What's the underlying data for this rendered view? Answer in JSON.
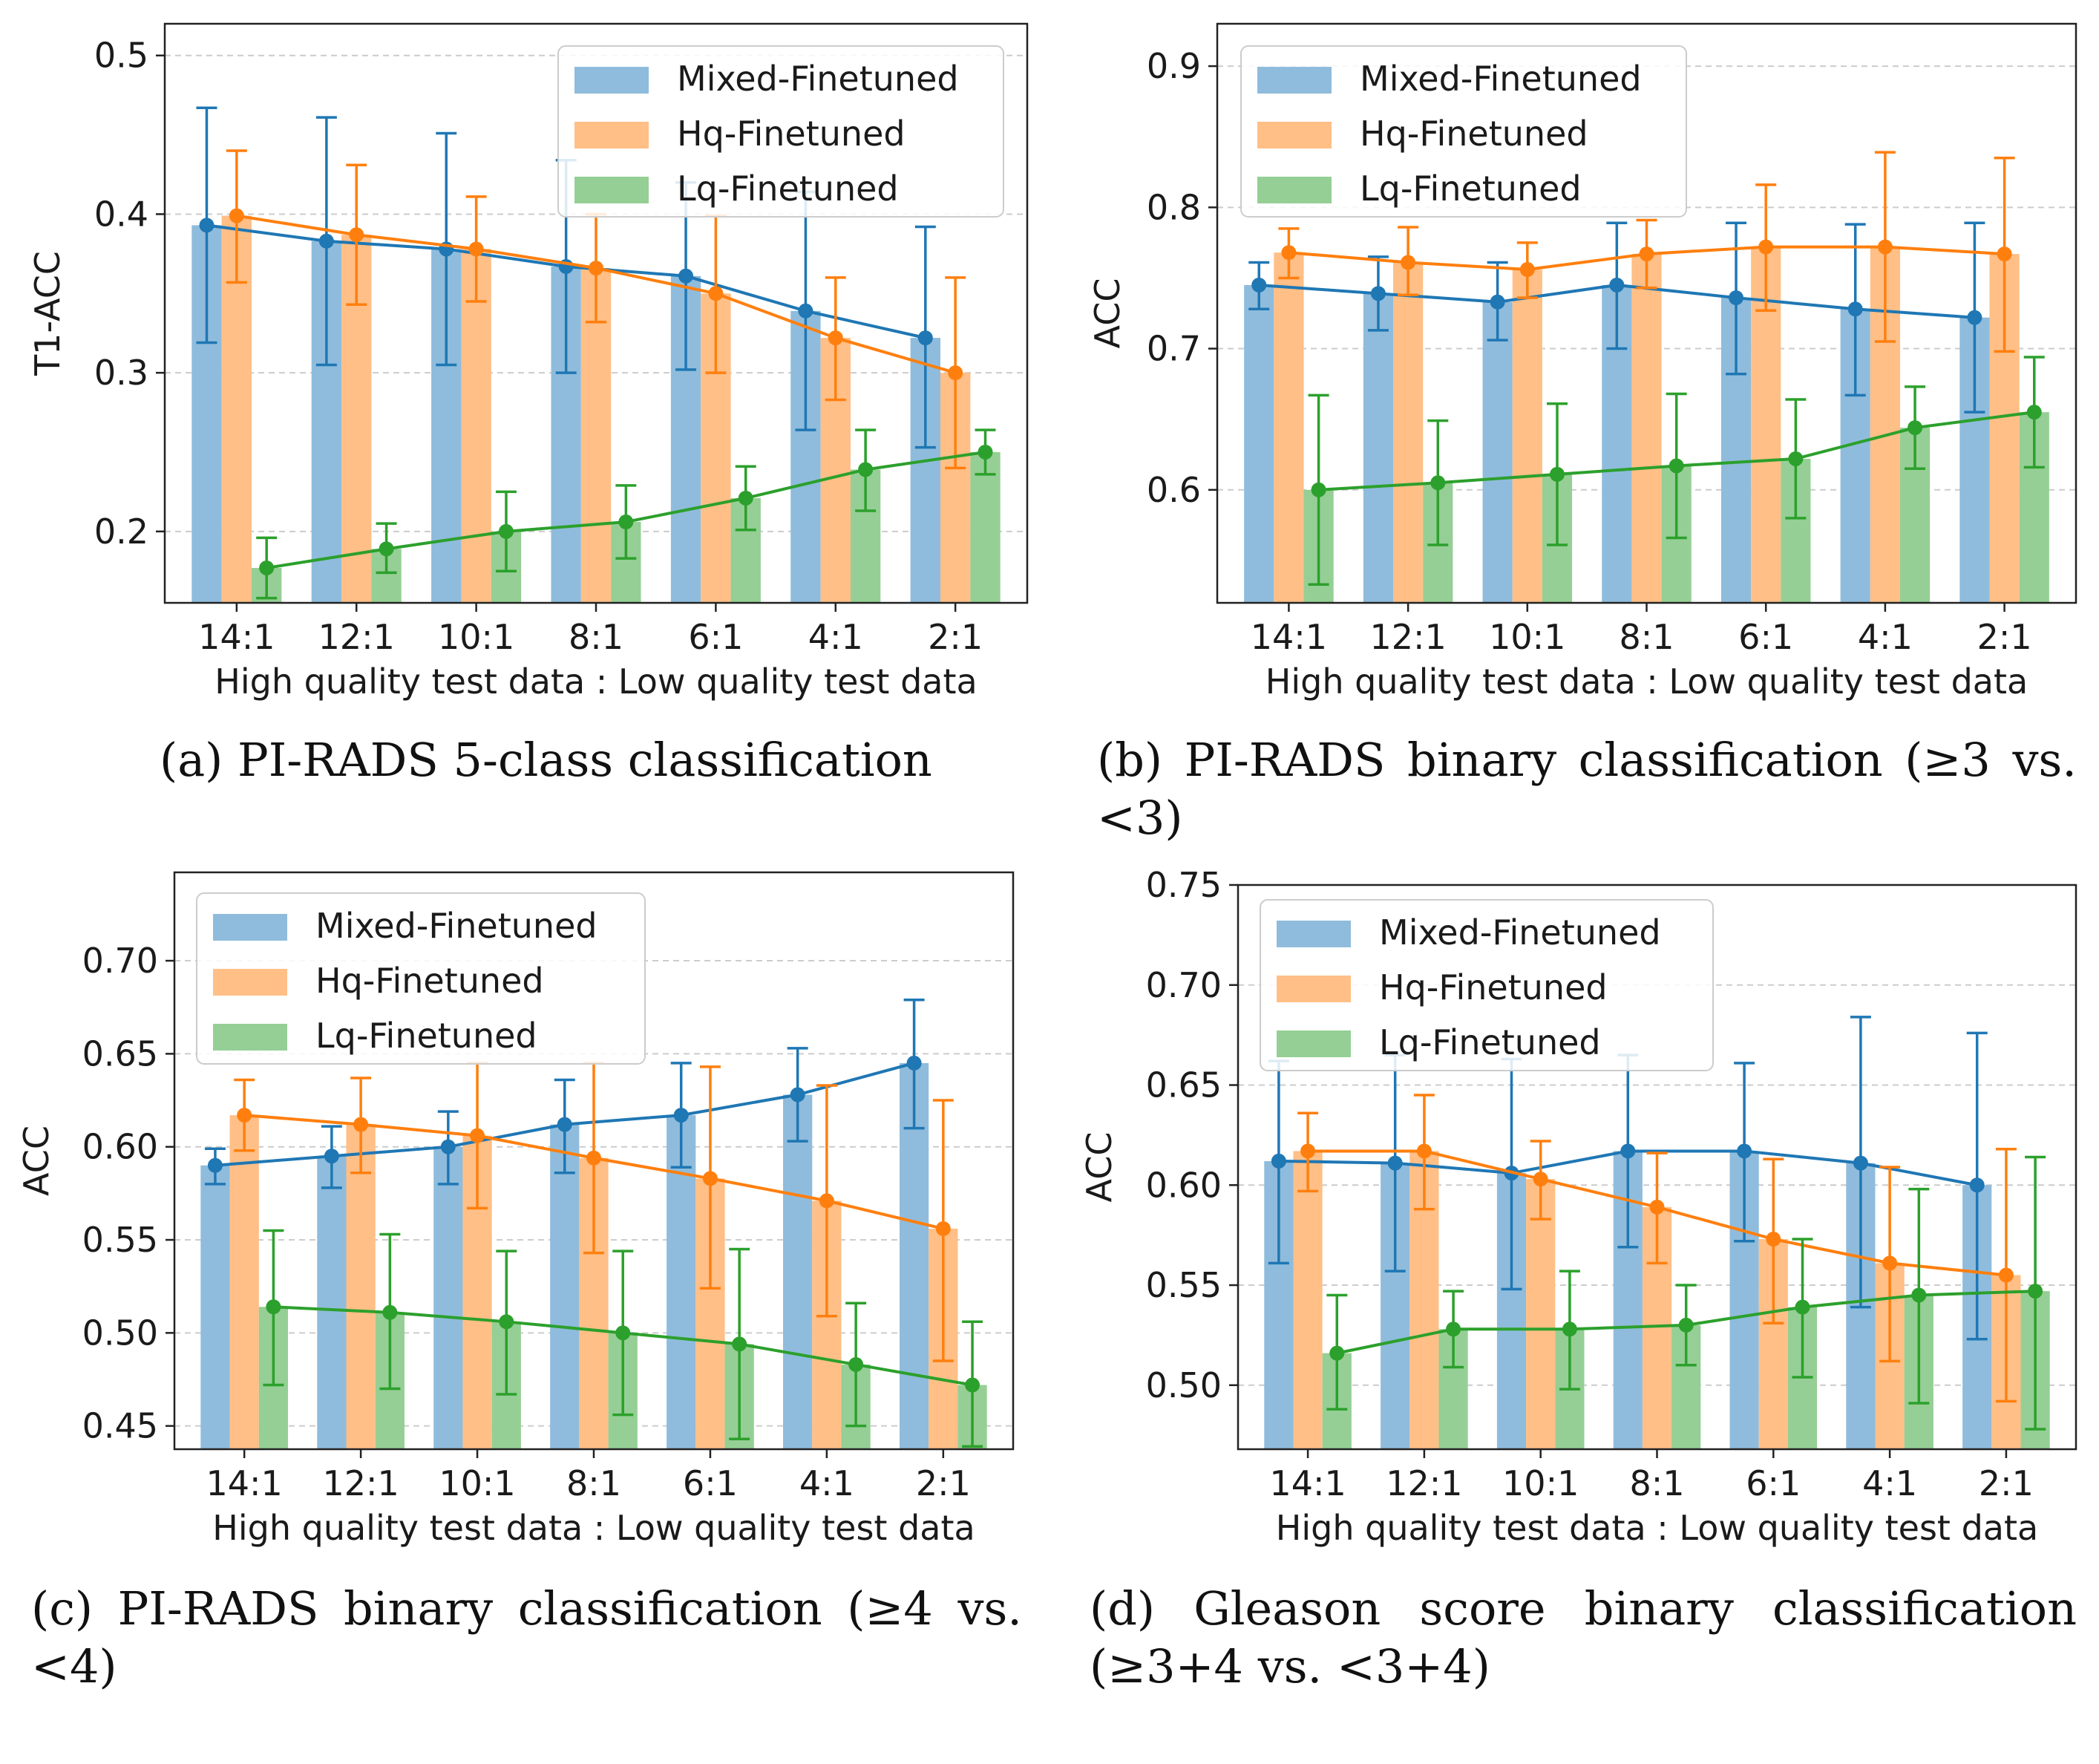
{
  "colors": {
    "mixed": "#1f77b4",
    "hq": "#ff7f0e",
    "lq": "#2ca02c",
    "mixed_bar": "#8fbcdc",
    "hq_bar": "#ffbf86",
    "lq_bar": "#95cf95"
  },
  "chart_data": [
    {
      "id": "a",
      "type": "bar",
      "title": "",
      "caption": "(a) PI-RADS 5-class classification",
      "xlabel": "High quality test data : Low quality test data",
      "ylabel": "T1-ACC",
      "categories": [
        "14:1",
        "12:1",
        "10:1",
        "8:1",
        "6:1",
        "4:1",
        "2:1"
      ],
      "ylim": [
        0.155,
        0.52
      ],
      "yticks": [
        0.2,
        0.3,
        0.4,
        0.5
      ],
      "ytick_labels": [
        "0.2",
        "0.3",
        "0.4",
        "0.5"
      ],
      "grid": true,
      "legend_position": "top-right",
      "series": [
        {
          "name": "Mixed-Finetuned",
          "values": [
            0.393,
            0.383,
            0.378,
            0.367,
            0.361,
            0.339,
            0.322
          ],
          "err_low": [
            0.319,
            0.305,
            0.305,
            0.3,
            0.302,
            0.264,
            0.253
          ],
          "err_high": [
            0.467,
            0.461,
            0.451,
            0.434,
            0.42,
            0.414,
            0.392
          ]
        },
        {
          "name": "Hq-Finetuned",
          "values": [
            0.399,
            0.387,
            0.378,
            0.366,
            0.35,
            0.322,
            0.3
          ],
          "err_low": [
            0.357,
            0.343,
            0.345,
            0.332,
            0.3,
            0.283,
            0.24
          ],
          "err_high": [
            0.44,
            0.431,
            0.411,
            0.4,
            0.399,
            0.36,
            0.36
          ]
        },
        {
          "name": "Lq-Finetuned",
          "values": [
            0.177,
            0.189,
            0.2,
            0.206,
            0.221,
            0.239,
            0.25
          ],
          "err_low": [
            0.158,
            0.174,
            0.175,
            0.183,
            0.201,
            0.213,
            0.236
          ],
          "err_high": [
            0.196,
            0.205,
            0.225,
            0.229,
            0.241,
            0.264,
            0.264
          ]
        }
      ]
    },
    {
      "id": "b",
      "type": "bar",
      "title": "",
      "caption": "(b) PI-RADS binary classification (≥3 vs. <3)",
      "xlabel": "High quality test data : Low quality test data",
      "ylabel": "ACC",
      "categories": [
        "14:1",
        "12:1",
        "10:1",
        "8:1",
        "6:1",
        "4:1",
        "2:1"
      ],
      "ylim": [
        0.52,
        0.93
      ],
      "yticks": [
        0.6,
        0.7,
        0.8,
        0.9
      ],
      "ytick_labels": [
        "0.6",
        "0.7",
        "0.8",
        "0.9"
      ],
      "grid": true,
      "legend_position": "top-left",
      "series": [
        {
          "name": "Mixed-Finetuned",
          "values": [
            0.745,
            0.739,
            0.733,
            0.745,
            0.736,
            0.728,
            0.722
          ],
          "err_low": [
            0.728,
            0.713,
            0.706,
            0.7,
            0.682,
            0.667,
            0.655
          ],
          "err_high": [
            0.761,
            0.765,
            0.761,
            0.789,
            0.789,
            0.788,
            0.789
          ]
        },
        {
          "name": "Hq-Finetuned",
          "values": [
            0.768,
            0.761,
            0.756,
            0.767,
            0.772,
            0.772,
            0.767
          ],
          "err_low": [
            0.75,
            0.738,
            0.736,
            0.743,
            0.727,
            0.705,
            0.698
          ],
          "err_high": [
            0.785,
            0.786,
            0.775,
            0.791,
            0.816,
            0.839,
            0.835
          ]
        },
        {
          "name": "Lq-Finetuned",
          "values": [
            0.6,
            0.605,
            0.611,
            0.617,
            0.622,
            0.644,
            0.655
          ],
          "err_low": [
            0.533,
            0.561,
            0.561,
            0.566,
            0.58,
            0.615,
            0.616
          ],
          "err_high": [
            0.667,
            0.649,
            0.661,
            0.668,
            0.664,
            0.673,
            0.694
          ]
        }
      ]
    },
    {
      "id": "c",
      "type": "bar",
      "title": "",
      "caption": "(c) PI-RADS binary classification (≥4 vs. <4)",
      "xlabel": "High quality test data : Low quality test data",
      "ylabel": "ACC",
      "categories": [
        "14:1",
        "12:1",
        "10:1",
        "8:1",
        "6:1",
        "4:1",
        "2:1"
      ],
      "ylim": [
        0.4375,
        0.7475
      ],
      "yticks": [
        0.45,
        0.5,
        0.55,
        0.6,
        0.65,
        0.7
      ],
      "ytick_labels": [
        "0.45",
        "0.50",
        "0.55",
        "0.60",
        "0.65",
        "0.70"
      ],
      "grid": true,
      "legend_position": "top-left",
      "series": [
        {
          "name": "Mixed-Finetuned",
          "values": [
            0.59,
            0.595,
            0.6,
            0.612,
            0.617,
            0.628,
            0.645
          ],
          "err_low": [
            0.58,
            0.578,
            0.58,
            0.586,
            0.589,
            0.603,
            0.61
          ],
          "err_high": [
            0.599,
            0.611,
            0.619,
            0.636,
            0.645,
            0.653,
            0.679
          ]
        },
        {
          "name": "Hq-Finetuned",
          "values": [
            0.617,
            0.612,
            0.606,
            0.594,
            0.583,
            0.571,
            0.556
          ],
          "err_low": [
            0.598,
            0.586,
            0.567,
            0.543,
            0.524,
            0.509,
            0.485
          ],
          "err_high": [
            0.636,
            0.637,
            0.645,
            0.645,
            0.643,
            0.633,
            0.625
          ]
        },
        {
          "name": "Lq-Finetuned",
          "values": [
            0.514,
            0.511,
            0.506,
            0.5,
            0.494,
            0.483,
            0.472
          ],
          "err_low": [
            0.472,
            0.47,
            0.467,
            0.456,
            0.443,
            0.45,
            0.439
          ],
          "err_high": [
            0.555,
            0.553,
            0.544,
            0.544,
            0.545,
            0.516,
            0.506
          ]
        }
      ]
    },
    {
      "id": "d",
      "type": "bar",
      "title": "",
      "caption": "(d) Gleason score binary classification (≥3+4 vs. <3+4)",
      "xlabel": "High quality test data : Low quality test data",
      "ylabel": "ACC",
      "categories": [
        "14:1",
        "12:1",
        "10:1",
        "8:1",
        "6:1",
        "4:1",
        "2:1"
      ],
      "ylim": [
        0.468,
        0.75
      ],
      "yticks": [
        0.5,
        0.55,
        0.6,
        0.65,
        0.7,
        0.75
      ],
      "ytick_labels": [
        "0.50",
        "0.55",
        "0.60",
        "0.65",
        "0.70",
        "0.75"
      ],
      "grid": true,
      "legend_position": "top-left",
      "series": [
        {
          "name": "Mixed-Finetuned",
          "values": [
            0.612,
            0.611,
            0.606,
            0.617,
            0.617,
            0.611,
            0.6
          ],
          "err_low": [
            0.561,
            0.557,
            0.548,
            0.569,
            0.572,
            0.539,
            0.523
          ],
          "err_high": [
            0.662,
            0.665,
            0.663,
            0.665,
            0.661,
            0.684,
            0.676
          ]
        },
        {
          "name": "Hq-Finetuned",
          "values": [
            0.617,
            0.617,
            0.603,
            0.589,
            0.573,
            0.561,
            0.555
          ],
          "err_low": [
            0.597,
            0.588,
            0.583,
            0.561,
            0.531,
            0.512,
            0.492
          ],
          "err_high": [
            0.636,
            0.645,
            0.622,
            0.616,
            0.613,
            0.609,
            0.618
          ]
        },
        {
          "name": "Lq-Finetuned",
          "values": [
            0.516,
            0.528,
            0.528,
            0.53,
            0.539,
            0.545,
            0.547
          ],
          "err_low": [
            0.488,
            0.509,
            0.498,
            0.51,
            0.504,
            0.491,
            0.478
          ],
          "err_high": [
            0.545,
            0.547,
            0.557,
            0.55,
            0.573,
            0.598,
            0.614
          ]
        }
      ]
    }
  ]
}
